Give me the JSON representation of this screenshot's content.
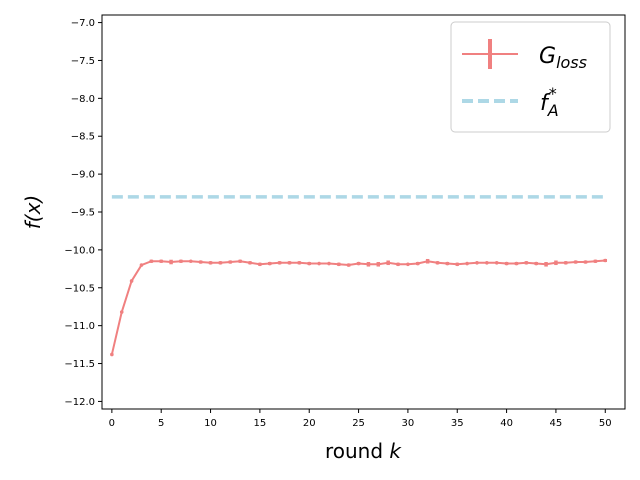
{
  "chart_data": {
    "type": "line",
    "xlabel": "round",
    "xlabel_var": "k",
    "ylabel": "f(x)",
    "xlim": [
      -1,
      52
    ],
    "ylim": [
      -12.1,
      -6.9
    ],
    "xticks": [
      0,
      5,
      10,
      15,
      20,
      25,
      30,
      35,
      40,
      45,
      50
    ],
    "yticks": [
      -12.0,
      -11.5,
      -11.0,
      -10.5,
      -10.0,
      -9.5,
      -9.0,
      -8.5,
      -8.0,
      -7.5,
      -7.0
    ],
    "grid": false,
    "legend_position": "top-right",
    "series": [
      {
        "name": "G_loss",
        "legend_main": "G",
        "legend_sub": "loss",
        "color": "#f08080",
        "style": "solid-with-errorbars",
        "x": [
          0,
          1,
          2,
          3,
          4,
          5,
          6,
          7,
          8,
          9,
          10,
          11,
          12,
          13,
          14,
          15,
          16,
          17,
          18,
          19,
          20,
          21,
          22,
          23,
          24,
          25,
          26,
          27,
          28,
          29,
          30,
          31,
          32,
          33,
          34,
          35,
          36,
          37,
          38,
          39,
          40,
          41,
          42,
          43,
          44,
          45,
          46,
          47,
          48,
          49,
          50
        ],
        "y": [
          -11.38,
          -10.82,
          -10.41,
          -10.2,
          -10.15,
          -10.15,
          -10.16,
          -10.15,
          -10.15,
          -10.16,
          -10.17,
          -10.17,
          -10.16,
          -10.15,
          -10.17,
          -10.19,
          -10.18,
          -10.17,
          -10.17,
          -10.17,
          -10.18,
          -10.18,
          -10.18,
          -10.19,
          -10.2,
          -10.18,
          -10.19,
          -10.19,
          -10.17,
          -10.19,
          -10.19,
          -10.18,
          -10.15,
          -10.17,
          -10.18,
          -10.19,
          -10.18,
          -10.17,
          -10.17,
          -10.17,
          -10.18,
          -10.18,
          -10.17,
          -10.18,
          -10.19,
          -10.17,
          -10.17,
          -10.16,
          -10.16,
          -10.15,
          -10.14
        ],
        "err": [
          0,
          0,
          0,
          0,
          0.02,
          0.02,
          0.03,
          0.02,
          0.01,
          0.02,
          0.02,
          0.02,
          0.02,
          0.02,
          0.02,
          0.02,
          0.02,
          0.02,
          0.02,
          0.02,
          0.02,
          0.01,
          0.01,
          0.02,
          0.02,
          0.02,
          0.03,
          0.03,
          0.03,
          0.02,
          0.01,
          0.02,
          0.03,
          0.02,
          0.02,
          0.02,
          0.01,
          0.01,
          0.01,
          0.01,
          0.02,
          0.02,
          0.02,
          0.02,
          0.03,
          0.03,
          0.02,
          0.02,
          0.02,
          0.02,
          0.02
        ]
      },
      {
        "name": "f_A^*",
        "legend_main": "f",
        "legend_sub": "A",
        "legend_sup": "*",
        "color": "#add8e6",
        "style": "dashed",
        "x": [
          0,
          50
        ],
        "y": [
          -9.3,
          -9.3
        ]
      }
    ]
  }
}
